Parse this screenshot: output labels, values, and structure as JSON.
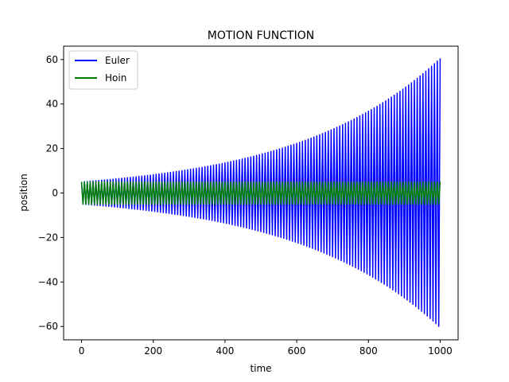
{
  "chart_data": {
    "type": "line",
    "title": "MOTION FUNCTION",
    "xlabel": "time",
    "ylabel": "position",
    "xlim": [
      -50,
      1050
    ],
    "ylim": [
      -66,
      66
    ],
    "xticks": [
      0,
      200,
      400,
      600,
      800,
      1000
    ],
    "yticks": [
      -60,
      -40,
      -20,
      0,
      20,
      40,
      60
    ],
    "grid": false,
    "legend": "top-left",
    "series": [
      {
        "name": "Euler",
        "color": "#0000ff",
        "model": "oscillation",
        "amplitude_start": 5,
        "amplitude_end": 60.5,
        "period": 8,
        "x_range": [
          0,
          1000
        ]
      },
      {
        "name": "Hoin",
        "color": "#008000",
        "model": "oscillation",
        "amplitude_start": 5,
        "amplitude_end": 5,
        "period": 8,
        "x_range": [
          0,
          1000
        ]
      }
    ]
  }
}
